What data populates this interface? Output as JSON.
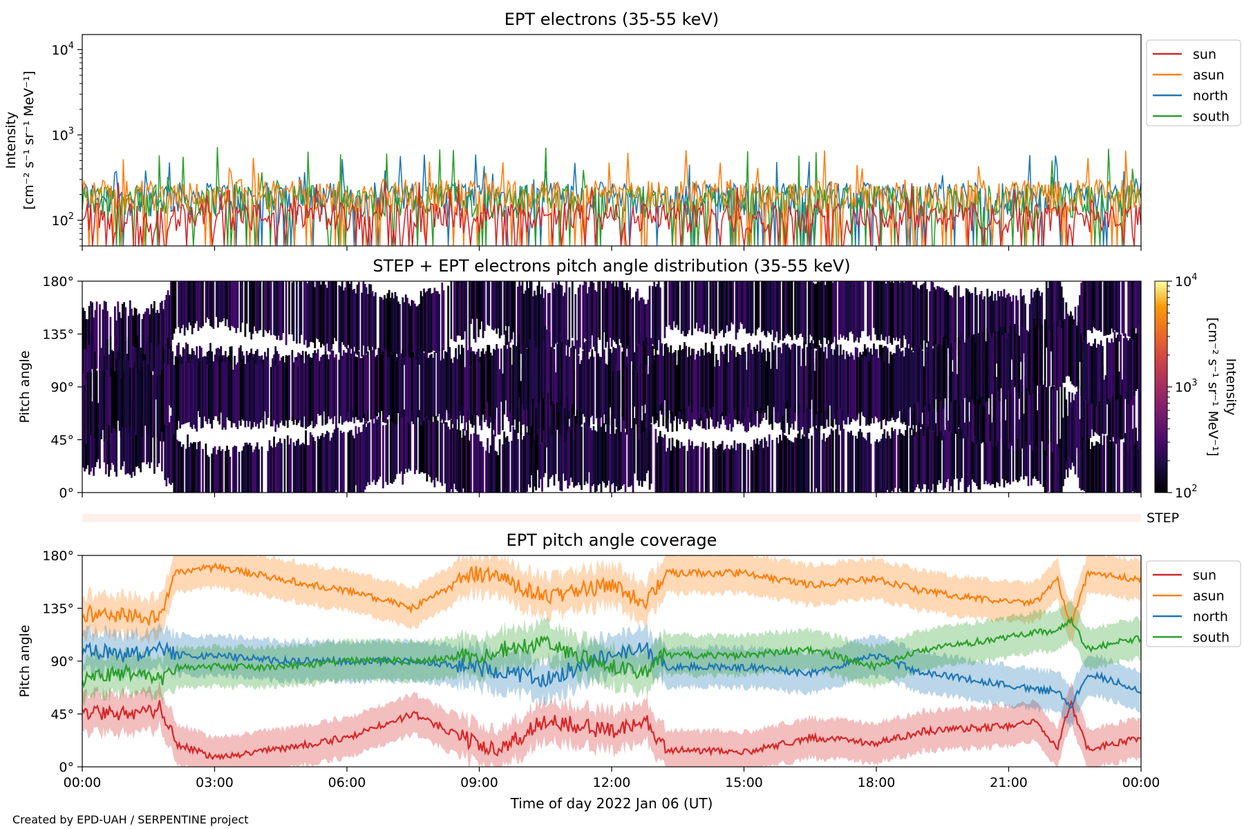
{
  "figure": {
    "credit": "Created by EPD-UAH / SERPENTINE project",
    "xlabel": "Time of day 2022 Jan 06 (UT)",
    "xticks": [
      "00:00",
      "03:00",
      "06:00",
      "09:00",
      "12:00",
      "15:00",
      "18:00",
      "21:00",
      "00:00"
    ],
    "step_strip_label": "STEP"
  },
  "chart_data": [
    {
      "type": "line",
      "title": "EPT electrons (35-55 keV)",
      "ylabel_line1": "Intensity",
      "ylabel_line2": "[cm⁻² s⁻¹ sr⁻¹ MeV⁻¹]",
      "yscale": "log",
      "ylim": [
        50,
        15000
      ],
      "yticks": [
        {
          "value": 100,
          "base": "10",
          "exp": "2"
        },
        {
          "value": 1000,
          "base": "10",
          "exp": "3"
        },
        {
          "value": 10000,
          "base": "10",
          "exp": "4"
        }
      ],
      "xlim_hours": [
        0,
        24
      ],
      "legend_position": "outside-right",
      "series": [
        {
          "name": "sun",
          "color": "#d62728",
          "typical": [
            70,
            160
          ],
          "peak": 300
        },
        {
          "name": "asun",
          "color": "#ff7f0e",
          "typical": [
            120,
            300
          ],
          "peak": 680
        },
        {
          "name": "north",
          "color": "#1f77b4",
          "typical": [
            110,
            280
          ],
          "peak": 600
        },
        {
          "name": "south",
          "color": "#2ca02c",
          "typical": [
            100,
            260
          ],
          "peak": 730
        }
      ]
    },
    {
      "type": "heatmap",
      "title": "STEP + EPT electrons pitch angle distribution (35-55 keV)",
      "ylabel": "Pitch angle",
      "ylim": [
        0,
        180
      ],
      "yticks": [
        "0°",
        "45°",
        "90°",
        "135°",
        "180°"
      ],
      "colorbar": {
        "label_line1": "Intensity",
        "label_line2": "[cm⁻² s⁻¹ sr⁻¹ MeV⁻¹]",
        "scale": "log",
        "range": [
          100,
          10000
        ],
        "ticks": [
          {
            "value": 100,
            "base": "10",
            "exp": "2"
          },
          {
            "value": 1000,
            "base": "10",
            "exp": "3"
          },
          {
            "value": 10000,
            "base": "10",
            "exp": "4"
          }
        ],
        "colormap": "inferno"
      }
    },
    {
      "type": "line",
      "title": "EPT pitch angle coverage",
      "ylabel": "Pitch angle",
      "ylim": [
        0,
        180
      ],
      "yticks": [
        "0°",
        "45°",
        "90°",
        "135°",
        "180°"
      ],
      "legend_position": "outside-right",
      "series": [
        {
          "name": "sun",
          "color": "#d62728",
          "x_hours": [
            0,
            1,
            1.8,
            2.1,
            3,
            4.5,
            6,
            7.5,
            8.9,
            9.5,
            10.5,
            12,
            12.8,
            13.2,
            15,
            16.5,
            18,
            19,
            21,
            21.6,
            22.1,
            22.4,
            22.8,
            24
          ],
          "y": [
            45,
            45,
            50,
            20,
            8,
            15,
            25,
            45,
            20,
            15,
            40,
            30,
            40,
            15,
            12,
            25,
            20,
            30,
            35,
            40,
            15,
            55,
            15,
            25
          ]
        },
        {
          "name": "asun",
          "color": "#ff7f0e",
          "x_hours": [
            0,
            1,
            1.8,
            2.1,
            3,
            4.5,
            6,
            7.5,
            8.9,
            9.5,
            10.5,
            12,
            12.8,
            13.2,
            15,
            16.5,
            18,
            19,
            21,
            21.6,
            22.1,
            22.4,
            22.8,
            24
          ],
          "y": [
            130,
            130,
            125,
            165,
            170,
            160,
            150,
            135,
            165,
            160,
            145,
            155,
            140,
            165,
            165,
            155,
            160,
            150,
            140,
            140,
            160,
            120,
            165,
            160
          ]
        },
        {
          "name": "north",
          "color": "#1f77b4",
          "x_hours": [
            0,
            1,
            1.8,
            2.1,
            3,
            4.5,
            6,
            7.5,
            8.9,
            9.5,
            10.5,
            12,
            12.8,
            13.2,
            15,
            16.5,
            18,
            19,
            21,
            21.6,
            22.1,
            22.4,
            22.8,
            24
          ],
          "y": [
            100,
            95,
            100,
            95,
            95,
            90,
            90,
            90,
            85,
            80,
            75,
            95,
            100,
            85,
            85,
            80,
            95,
            80,
            70,
            65,
            65,
            50,
            80,
            65
          ]
        },
        {
          "name": "south",
          "color": "#2ca02c",
          "x_hours": [
            0,
            1,
            1.8,
            2.1,
            3,
            4.5,
            6,
            7.5,
            8.9,
            9.5,
            10.5,
            12,
            12.8,
            13.2,
            15,
            16.5,
            18,
            19,
            21,
            21.6,
            22.1,
            22.4,
            22.8,
            24
          ],
          "y": [
            75,
            80,
            75,
            85,
            85,
            85,
            90,
            90,
            95,
            100,
            105,
            85,
            80,
            95,
            95,
            100,
            85,
            100,
            110,
            115,
            115,
            125,
            100,
            110
          ]
        }
      ]
    }
  ]
}
